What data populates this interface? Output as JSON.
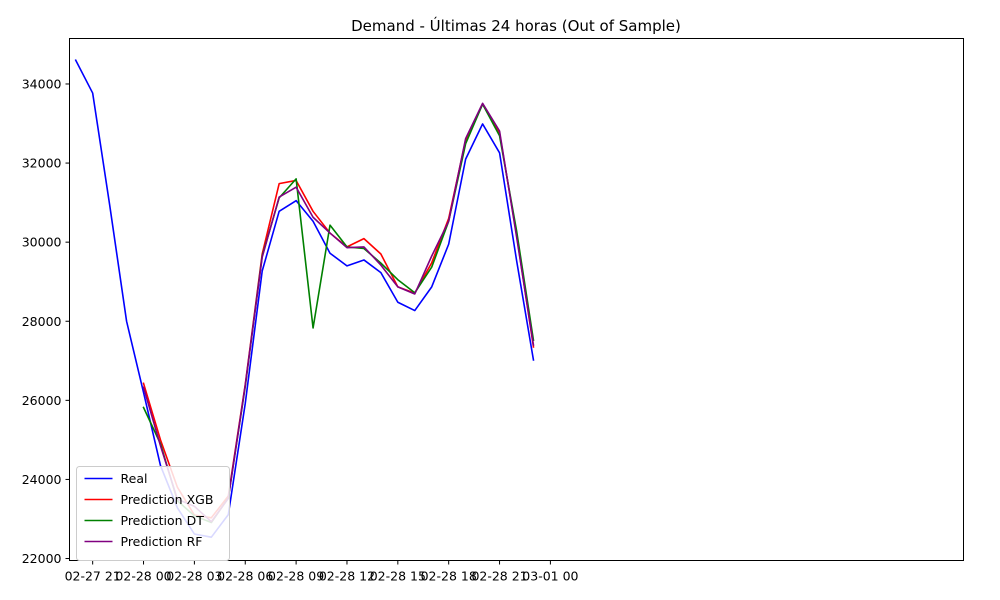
{
  "chart_data": {
    "type": "line",
    "title": "Demand - Últimas 24 horas (Out of Sample)",
    "xlabel": "",
    "ylabel": "",
    "x_ticks": [
      "02-27 21",
      "02-28 00",
      "02-28 03",
      "02-28 06",
      "02-28 09",
      "02-28 12",
      "02-28 15",
      "02-28 18",
      "02-28 21",
      "03-01 00"
    ],
    "y_ticks": [
      22000,
      24000,
      26000,
      28000,
      30000,
      32000,
      34000
    ],
    "xlim": [
      "2024-02-27 19:38",
      "2024-03-01 00:22"
    ],
    "ylim": [
      21950,
      35150
    ],
    "grid": false,
    "legend_position": "lower-left",
    "series": [
      {
        "name": "Real",
        "color": "#0000ff",
        "points": [
          [
            "2024-02-27 20:00",
            34600
          ],
          [
            "2024-02-27 21:00",
            33770
          ],
          [
            "2024-02-27 22:00",
            30950
          ],
          [
            "2024-02-27 23:00",
            28000
          ],
          [
            "2024-02-28 00:00",
            26200
          ],
          [
            "2024-02-28 01:00",
            24350
          ],
          [
            "2024-02-28 02:00",
            23280
          ],
          [
            "2024-02-28 03:00",
            22620
          ],
          [
            "2024-02-28 04:00",
            22540
          ],
          [
            "2024-02-28 05:00",
            23110
          ],
          [
            "2024-02-28 06:00",
            25920
          ],
          [
            "2024-02-28 07:00",
            29270
          ],
          [
            "2024-02-28 08:00",
            30780
          ],
          [
            "2024-02-28 09:00",
            31050
          ],
          [
            "2024-02-28 10:00",
            30530
          ],
          [
            "2024-02-28 11:00",
            29720
          ],
          [
            "2024-02-28 12:00",
            29400
          ],
          [
            "2024-02-28 13:00",
            29550
          ],
          [
            "2024-02-28 14:00",
            29230
          ],
          [
            "2024-02-28 15:00",
            28480
          ],
          [
            "2024-02-28 16:00",
            28270
          ],
          [
            "2024-02-28 17:00",
            28870
          ],
          [
            "2024-02-28 18:00",
            29950
          ],
          [
            "2024-02-28 19:00",
            32100
          ],
          [
            "2024-02-28 20:00",
            32990
          ],
          [
            "2024-02-28 21:00",
            32260
          ],
          [
            "2024-02-28 22:00",
            29550
          ],
          [
            "2024-02-28 23:00",
            27020
          ]
        ]
      },
      {
        "name": "Prediction XGB",
        "color": "#ff0000",
        "points": [
          [
            "2024-02-28 00:00",
            26430
          ],
          [
            "2024-02-28 01:00",
            25000
          ],
          [
            "2024-02-28 02:00",
            23800
          ],
          [
            "2024-02-28 03:00",
            23100
          ],
          [
            "2024-02-28 04:00",
            23030
          ],
          [
            "2024-02-28 05:00",
            23580
          ],
          [
            "2024-02-28 06:00",
            26400
          ],
          [
            "2024-02-28 07:00",
            29700
          ],
          [
            "2024-02-28 08:00",
            31480
          ],
          [
            "2024-02-28 09:00",
            31560
          ],
          [
            "2024-02-28 10:00",
            30780
          ],
          [
            "2024-02-28 11:00",
            30230
          ],
          [
            "2024-02-28 12:00",
            29880
          ],
          [
            "2024-02-28 13:00",
            30090
          ],
          [
            "2024-02-28 14:00",
            29700
          ],
          [
            "2024-02-28 15:00",
            28870
          ],
          [
            "2024-02-28 16:00",
            28710
          ],
          [
            "2024-02-28 17:00",
            29480
          ],
          [
            "2024-02-28 18:00",
            30600
          ],
          [
            "2024-02-28 19:00",
            32580
          ],
          [
            "2024-02-28 20:00",
            33490
          ],
          [
            "2024-02-28 21:00",
            32760
          ],
          [
            "2024-02-28 22:00",
            30200
          ],
          [
            "2024-02-28 23:00",
            27350
          ]
        ]
      },
      {
        "name": "Prediction DT",
        "color": "#008000",
        "points": [
          [
            "2024-02-28 00:00",
            25820
          ],
          [
            "2024-02-28 01:00",
            24900
          ],
          [
            "2024-02-28 02:00",
            23460
          ],
          [
            "2024-02-28 03:00",
            23080
          ],
          [
            "2024-02-28 04:00",
            22910
          ],
          [
            "2024-02-28 05:00",
            23530
          ],
          [
            "2024-02-28 06:00",
            26350
          ],
          [
            "2024-02-28 07:00",
            29650
          ],
          [
            "2024-02-28 08:00",
            31120
          ],
          [
            "2024-02-28 09:00",
            31600
          ],
          [
            "2024-02-28 10:00",
            27830
          ],
          [
            "2024-02-28 11:00",
            30430
          ],
          [
            "2024-02-28 12:00",
            29880
          ],
          [
            "2024-02-28 13:00",
            29840
          ],
          [
            "2024-02-28 14:00",
            29470
          ],
          [
            "2024-02-28 15:00",
            29050
          ],
          [
            "2024-02-28 16:00",
            28720
          ],
          [
            "2024-02-28 17:00",
            29370
          ],
          [
            "2024-02-28 18:00",
            30530
          ],
          [
            "2024-02-28 19:00",
            32490
          ],
          [
            "2024-02-28 20:00",
            33490
          ],
          [
            "2024-02-28 21:00",
            32690
          ],
          [
            "2024-02-28 22:00",
            30300
          ],
          [
            "2024-02-28 23:00",
            27520
          ]
        ]
      },
      {
        "name": "Prediction RF",
        "color": "#800080",
        "points": [
          [
            "2024-02-28 00:00",
            26330
          ],
          [
            "2024-02-28 01:00",
            24850
          ],
          [
            "2024-02-28 02:00",
            23500
          ],
          [
            "2024-02-28 03:00",
            23320
          ],
          [
            "2024-02-28 04:00",
            22930
          ],
          [
            "2024-02-28 05:00",
            23520
          ],
          [
            "2024-02-28 06:00",
            26380
          ],
          [
            "2024-02-28 07:00",
            29620
          ],
          [
            "2024-02-28 08:00",
            31140
          ],
          [
            "2024-02-28 09:00",
            31390
          ],
          [
            "2024-02-28 10:00",
            30630
          ],
          [
            "2024-02-28 11:00",
            30230
          ],
          [
            "2024-02-28 12:00",
            29860
          ],
          [
            "2024-02-28 13:00",
            29880
          ],
          [
            "2024-02-28 14:00",
            29420
          ],
          [
            "2024-02-28 15:00",
            28870
          ],
          [
            "2024-02-28 16:00",
            28690
          ],
          [
            "2024-02-28 17:00",
            29650
          ],
          [
            "2024-02-28 18:00",
            30530
          ],
          [
            "2024-02-28 19:00",
            32620
          ],
          [
            "2024-02-28 20:00",
            33510
          ],
          [
            "2024-02-28 21:00",
            32810
          ],
          [
            "2024-02-28 22:00",
            30150
          ],
          [
            "2024-02-28 23:00",
            27400
          ]
        ]
      }
    ]
  }
}
